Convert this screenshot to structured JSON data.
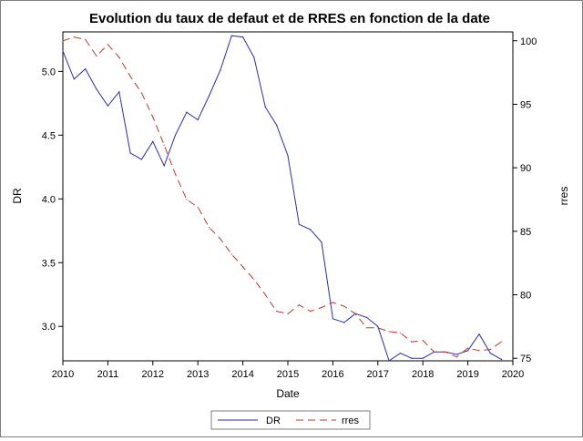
{
  "chart_data": {
    "type": "line",
    "title": "Evolution du taux de defaut et de RRES en fonction de la date",
    "xlabel": "Date",
    "ylabel_left": "DR",
    "ylabel_right": "rres",
    "xlim": [
      2010,
      2020
    ],
    "ylim_left": [
      2.73,
      5.31
    ],
    "ylim_right": [
      74.8,
      100.7
    ],
    "x_ticks": [
      "2010",
      "2011",
      "2012",
      "2013",
      "2014",
      "2015",
      "2016",
      "2017",
      "2018",
      "2019",
      "2020"
    ],
    "y_left_ticks": [
      "3.0",
      "3.5",
      "4.0",
      "4.5",
      "5.0"
    ],
    "y_right_ticks": [
      "75",
      "80",
      "85",
      "90",
      "95",
      "100"
    ],
    "grid": false,
    "legend_placement": "bottom",
    "series": [
      {
        "name": "DR",
        "axis": "left",
        "color": "#2b2bbd",
        "dash": "solid",
        "x": [
          2010.0,
          2010.25,
          2010.5,
          2010.75,
          2011.0,
          2011.25,
          2011.5,
          2011.75,
          2012.0,
          2012.25,
          2012.5,
          2012.75,
          2013.0,
          2013.25,
          2013.5,
          2013.75,
          2014.0,
          2014.25,
          2014.5,
          2014.75,
          2015.0,
          2015.25,
          2015.5,
          2015.75,
          2016.0,
          2016.25,
          2016.5,
          2016.75,
          2017.0,
          2017.25,
          2017.5,
          2017.75,
          2018.0,
          2018.25,
          2018.5,
          2018.75,
          2019.0,
          2019.25,
          2019.5,
          2019.75
        ],
        "y": [
          5.16,
          4.94,
          5.02,
          4.86,
          4.73,
          4.84,
          4.36,
          4.31,
          4.45,
          4.26,
          4.5,
          4.68,
          4.62,
          4.81,
          5.01,
          5.28,
          5.27,
          5.11,
          4.72,
          4.58,
          4.34,
          3.8,
          3.76,
          3.66,
          3.06,
          3.03,
          3.1,
          3.07,
          3.0,
          2.73,
          2.79,
          2.75,
          2.75,
          2.8,
          2.8,
          2.78,
          2.81,
          2.94,
          2.79,
          2.74
        ]
      },
      {
        "name": "rres",
        "axis": "right",
        "color": "#c0392b",
        "dash": "dashed",
        "x": [
          2010.0,
          2010.25,
          2010.5,
          2010.75,
          2011.0,
          2011.25,
          2011.5,
          2011.75,
          2012.0,
          2012.25,
          2012.5,
          2012.75,
          2013.0,
          2013.25,
          2013.5,
          2013.75,
          2014.0,
          2014.25,
          2014.5,
          2014.75,
          2015.0,
          2015.25,
          2015.5,
          2015.75,
          2016.0,
          2016.25,
          2016.5,
          2016.75,
          2017.0,
          2017.25,
          2017.5,
          2017.75,
          2018.0,
          2018.25,
          2018.5,
          2018.75,
          2019.0,
          2019.25,
          2019.5,
          2019.75
        ],
        "y": [
          100.0,
          100.3,
          100.1,
          98.8,
          99.7,
          98.7,
          97.2,
          95.9,
          94.0,
          91.8,
          89.5,
          87.5,
          86.9,
          85.3,
          84.4,
          83.2,
          82.2,
          81.2,
          80.0,
          78.7,
          78.5,
          79.2,
          78.7,
          79.0,
          79.4,
          79.1,
          78.5,
          77.4,
          77.4,
          77.1,
          77.0,
          76.3,
          76.4,
          75.5,
          75.5,
          75.1,
          75.8,
          75.6,
          75.7,
          76.3
        ]
      }
    ]
  }
}
